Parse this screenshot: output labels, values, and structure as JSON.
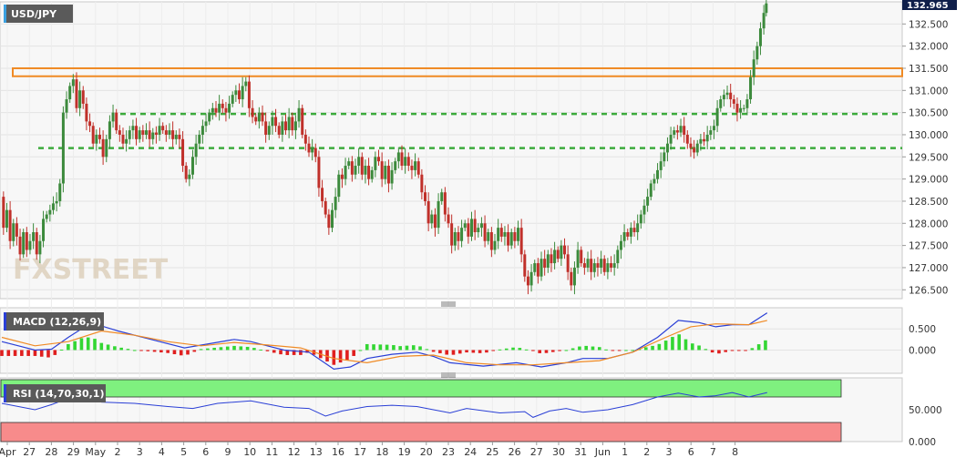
{
  "chart_data": [
    {
      "type": "candlestick",
      "title": "USD/JPY",
      "watermark": "FXSTREET",
      "ylim": [
        126.3,
        133.0
      ],
      "y_ticks": [
        "132.500",
        "132.000",
        "131.500",
        "131.000",
        "130.500",
        "130.000",
        "129.500",
        "129.000",
        "128.500",
        "128.000",
        "127.500",
        "127.000",
        "126.500"
      ],
      "y_tick_values": [
        132.5,
        132.0,
        131.5,
        131.0,
        130.5,
        130.0,
        129.5,
        129.0,
        128.5,
        128.0,
        127.5,
        127.0,
        126.5
      ],
      "last_price": "132.965",
      "last_price_value": 132.965,
      "resistance_zone": [
        131.32,
        131.5
      ],
      "support_levels": [
        130.47,
        129.7
      ],
      "x_ticks": [
        "Apr",
        "27",
        "28",
        "29",
        "May",
        "2",
        "3",
        "4",
        "5",
        "6",
        "9",
        "10",
        "11",
        "12",
        "13",
        "16",
        "17",
        "18",
        "19",
        "20",
        "23",
        "24",
        "25",
        "26",
        "27",
        "30",
        "31",
        "Jun",
        "1",
        "2",
        "3",
        "6",
        "7",
        "8"
      ],
      "path": [
        [
          0,
          128.6
        ],
        [
          4,
          127.9
        ],
        [
          8,
          128.3
        ],
        [
          12,
          127.6
        ],
        [
          16,
          128.0
        ],
        [
          20,
          127.7
        ],
        [
          24,
          127.3
        ],
        [
          28,
          127.8
        ],
        [
          32,
          127.4
        ],
        [
          36,
          127.6
        ],
        [
          40,
          127.8
        ],
        [
          44,
          127.3
        ],
        [
          48,
          127.6
        ],
        [
          52,
          128.1
        ],
        [
          56,
          128.2
        ],
        [
          60,
          128.3
        ],
        [
          64,
          128.45
        ],
        [
          68,
          128.5
        ],
        [
          72,
          128.9
        ],
        [
          76,
          130.5
        ],
        [
          80,
          130.8
        ],
        [
          84,
          131.1
        ],
        [
          88,
          131.25
        ],
        [
          92,
          130.6
        ],
        [
          96,
          131.0
        ],
        [
          100,
          130.7
        ],
        [
          104,
          130.3
        ],
        [
          108,
          130.2
        ],
        [
          112,
          129.8
        ],
        [
          116,
          130.0
        ],
        [
          120,
          129.9
        ],
        [
          124,
          129.5
        ],
        [
          128,
          129.9
        ],
        [
          132,
          130.3
        ],
        [
          136,
          130.5
        ],
        [
          140,
          130.1
        ],
        [
          144,
          130.0
        ],
        [
          148,
          129.8
        ],
        [
          152,
          129.9
        ],
        [
          156,
          130.1
        ],
        [
          160,
          130.2
        ],
        [
          164,
          129.9
        ],
        [
          168,
          130.1
        ],
        [
          172,
          130.0
        ],
        [
          176,
          130.1
        ],
        [
          180,
          129.9
        ],
        [
          184,
          130.05
        ],
        [
          188,
          130.0
        ],
        [
          192,
          130.2
        ],
        [
          196,
          130.1
        ],
        [
          200,
          130.0
        ],
        [
          204,
          130.1
        ],
        [
          208,
          129.9
        ],
        [
          212,
          130.0
        ],
        [
          216,
          129.9
        ],
        [
          220,
          129.3
        ],
        [
          224,
          129.0
        ],
        [
          228,
          129.1
        ],
        [
          232,
          129.5
        ],
        [
          236,
          129.8
        ],
        [
          240,
          130.0
        ],
        [
          244,
          130.2
        ],
        [
          248,
          130.3
        ],
        [
          252,
          130.5
        ],
        [
          256,
          130.6
        ],
        [
          260,
          130.5
        ],
        [
          264,
          130.7
        ],
        [
          268,
          130.6
        ],
        [
          272,
          130.5
        ],
        [
          276,
          130.7
        ],
        [
          280,
          130.9
        ],
        [
          284,
          131.0
        ],
        [
          288,
          130.8
        ],
        [
          292,
          131.1
        ],
        [
          296,
          131.2
        ],
        [
          300,
          130.6
        ],
        [
          304,
          130.4
        ],
        [
          308,
          130.3
        ],
        [
          312,
          130.5
        ],
        [
          316,
          130.3
        ],
        [
          320,
          130.0
        ],
        [
          324,
          130.2
        ],
        [
          328,
          130.4
        ],
        [
          332,
          130.2
        ],
        [
          336,
          130.0
        ],
        [
          340,
          130.3
        ],
        [
          344,
          130.1
        ],
        [
          348,
          130.4
        ],
        [
          352,
          130.1
        ],
        [
          356,
          130.3
        ],
        [
          360,
          130.6
        ],
        [
          364,
          130.0
        ],
        [
          368,
          129.8
        ],
        [
          372,
          129.6
        ],
        [
          376,
          129.7
        ],
        [
          380,
          129.5
        ],
        [
          384,
          128.8
        ],
        [
          388,
          128.5
        ],
        [
          392,
          128.2
        ],
        [
          396,
          127.9
        ],
        [
          400,
          128.3
        ],
        [
          404,
          128.6
        ],
        [
          408,
          129.1
        ],
        [
          412,
          129.0
        ],
        [
          416,
          129.3
        ],
        [
          420,
          129.4
        ],
        [
          424,
          129.1
        ],
        [
          428,
          129.3
        ],
        [
          432,
          129.5
        ],
        [
          436,
          129.1
        ],
        [
          440,
          129.3
        ],
        [
          444,
          129.0
        ],
        [
          448,
          129.2
        ],
        [
          452,
          129.5
        ],
        [
          456,
          129.4
        ],
        [
          460,
          129.0
        ],
        [
          464,
          129.3
        ],
        [
          468,
          128.9
        ],
        [
          472,
          129.2
        ],
        [
          476,
          129.4
        ],
        [
          480,
          129.6
        ],
        [
          484,
          129.3
        ],
        [
          488,
          129.5
        ],
        [
          492,
          129.3
        ],
        [
          496,
          129.2
        ],
        [
          500,
          129.4
        ],
        [
          504,
          129.1
        ],
        [
          508,
          128.7
        ],
        [
          512,
          128.5
        ],
        [
          516,
          128.0
        ],
        [
          520,
          128.2
        ],
        [
          524,
          127.9
        ],
        [
          528,
          128.5
        ],
        [
          532,
          128.7
        ],
        [
          536,
          128.2
        ],
        [
          540,
          128.0
        ],
        [
          544,
          127.5
        ],
        [
          548,
          127.8
        ],
        [
          552,
          127.6
        ],
        [
          556,
          127.9
        ],
        [
          560,
          128.0
        ],
        [
          564,
          127.7
        ],
        [
          568,
          128.1
        ],
        [
          572,
          127.8
        ],
        [
          576,
          127.9
        ],
        [
          580,
          128.0
        ],
        [
          584,
          127.6
        ],
        [
          588,
          127.8
        ],
        [
          592,
          127.4
        ],
        [
          596,
          127.6
        ],
        [
          600,
          127.9
        ],
        [
          604,
          127.7
        ],
        [
          608,
          127.8
        ],
        [
          612,
          127.5
        ],
        [
          616,
          127.8
        ],
        [
          620,
          127.6
        ],
        [
          624,
          127.9
        ],
        [
          628,
          127.3
        ],
        [
          632,
          126.8
        ],
        [
          636,
          126.6
        ],
        [
          640,
          126.9
        ],
        [
          644,
          127.1
        ],
        [
          648,
          126.8
        ],
        [
          652,
          127.2
        ],
        [
          656,
          127.0
        ],
        [
          660,
          127.3
        ],
        [
          664,
          127.1
        ],
        [
          668,
          127.4
        ],
        [
          672,
          127.2
        ],
        [
          676,
          127.5
        ],
        [
          680,
          127.3
        ],
        [
          684,
          126.9
        ],
        [
          688,
          126.6
        ],
        [
          692,
          127.0
        ],
        [
          696,
          127.4
        ],
        [
          700,
          127.1
        ],
        [
          704,
          127.0
        ],
        [
          708,
          127.2
        ],
        [
          712,
          126.9
        ],
        [
          716,
          127.1
        ],
        [
          720,
          127.0
        ],
        [
          724,
          127.2
        ],
        [
          728,
          126.9
        ],
        [
          732,
          127.1
        ],
        [
          736,
          127.0
        ],
        [
          740,
          127.1
        ],
        [
          744,
          127.4
        ],
        [
          748,
          127.6
        ],
        [
          752,
          127.8
        ],
        [
          756,
          127.7
        ],
        [
          760,
          127.9
        ],
        [
          764,
          127.8
        ],
        [
          768,
          128.0
        ],
        [
          772,
          128.2
        ],
        [
          776,
          128.4
        ],
        [
          780,
          128.6
        ],
        [
          784,
          128.9
        ],
        [
          788,
          129.0
        ],
        [
          792,
          129.2
        ],
        [
          796,
          129.4
        ],
        [
          800,
          129.6
        ],
        [
          804,
          129.8
        ],
        [
          808,
          130.0
        ],
        [
          812,
          130.1
        ],
        [
          816,
          130.05
        ],
        [
          820,
          130.2
        ],
        [
          824,
          130.0
        ],
        [
          828,
          129.8
        ],
        [
          832,
          129.7
        ],
        [
          836,
          129.6
        ],
        [
          840,
          129.8
        ],
        [
          844,
          129.9
        ],
        [
          848,
          129.85
        ],
        [
          852,
          130.0
        ],
        [
          856,
          130.1
        ],
        [
          860,
          130.2
        ],
        [
          864,
          130.6
        ],
        [
          868,
          130.8
        ],
        [
          872,
          130.9
        ],
        [
          876,
          130.95
        ],
        [
          880,
          130.8
        ],
        [
          884,
          130.7
        ],
        [
          888,
          130.5
        ],
        [
          892,
          130.6
        ],
        [
          896,
          130.6
        ],
        [
          900,
          130.8
        ],
        [
          904,
          131.3
        ],
        [
          908,
          131.7
        ],
        [
          912,
          132.0
        ],
        [
          916,
          132.4
        ],
        [
          920,
          132.75
        ],
        [
          922,
          132.965
        ]
      ]
    },
    {
      "type": "line",
      "title": "MACD (12,26,9)",
      "ylim": [
        -0.55,
        1.0
      ],
      "y_ticks": [
        "0.500",
        "0.000"
      ],
      "y_tick_values": [
        0.5,
        0.0
      ],
      "macd": [
        [
          0,
          0.2
        ],
        [
          20,
          0.1
        ],
        [
          40,
          0.0
        ],
        [
          60,
          0.02
        ],
        [
          80,
          0.3
        ],
        [
          100,
          0.55
        ],
        [
          115,
          0.6
        ],
        [
          140,
          0.45
        ],
        [
          180,
          0.25
        ],
        [
          220,
          0.05
        ],
        [
          250,
          0.15
        ],
        [
          280,
          0.25
        ],
        [
          300,
          0.2
        ],
        [
          340,
          0.0
        ],
        [
          370,
          -0.05
        ],
        [
          400,
          -0.45
        ],
        [
          420,
          -0.4
        ],
        [
          440,
          -0.2
        ],
        [
          470,
          -0.1
        ],
        [
          500,
          -0.05
        ],
        [
          520,
          -0.15
        ],
        [
          540,
          -0.3
        ],
        [
          580,
          -0.38
        ],
        [
          620,
          -0.3
        ],
        [
          650,
          -0.4
        ],
        [
          680,
          -0.3
        ],
        [
          700,
          -0.2
        ],
        [
          730,
          -0.2
        ],
        [
          760,
          -0.05
        ],
        [
          790,
          0.3
        ],
        [
          815,
          0.7
        ],
        [
          840,
          0.65
        ],
        [
          860,
          0.55
        ],
        [
          880,
          0.6
        ],
        [
          900,
          0.6
        ],
        [
          922,
          0.88
        ]
      ],
      "signal": [
        [
          0,
          0.3
        ],
        [
          40,
          0.1
        ],
        [
          80,
          0.2
        ],
        [
          120,
          0.45
        ],
        [
          160,
          0.35
        ],
        [
          200,
          0.2
        ],
        [
          240,
          0.1
        ],
        [
          280,
          0.18
        ],
        [
          320,
          0.12
        ],
        [
          360,
          0.05
        ],
        [
          400,
          -0.2
        ],
        [
          440,
          -0.3
        ],
        [
          480,
          -0.15
        ],
        [
          520,
          -0.12
        ],
        [
          560,
          -0.3
        ],
        [
          600,
          -0.35
        ],
        [
          640,
          -0.35
        ],
        [
          680,
          -0.3
        ],
        [
          720,
          -0.25
        ],
        [
          760,
          -0.05
        ],
        [
          800,
          0.3
        ],
        [
          830,
          0.55
        ],
        [
          860,
          0.62
        ],
        [
          900,
          0.6
        ],
        [
          922,
          0.7
        ]
      ]
    },
    {
      "type": "line",
      "title": "RSI (14,70,30,1)",
      "ylim": [
        0,
        100
      ],
      "y_ticks": [
        "50.000",
        "0.000"
      ],
      "y_tick_values": [
        50,
        0
      ],
      "overbought": 70,
      "oversold": 30,
      "rsi": [
        [
          0,
          60
        ],
        [
          20,
          55
        ],
        [
          40,
          50
        ],
        [
          60,
          58
        ],
        [
          80,
          68
        ],
        [
          100,
          70
        ],
        [
          120,
          62
        ],
        [
          160,
          60
        ],
        [
          200,
          55
        ],
        [
          230,
          52
        ],
        [
          260,
          60
        ],
        [
          300,
          64
        ],
        [
          340,
          54
        ],
        [
          370,
          52
        ],
        [
          390,
          40
        ],
        [
          410,
          48
        ],
        [
          440,
          55
        ],
        [
          470,
          57
        ],
        [
          500,
          55
        ],
        [
          520,
          50
        ],
        [
          540,
          45
        ],
        [
          560,
          52
        ],
        [
          600,
          45
        ],
        [
          630,
          47
        ],
        [
          640,
          38
        ],
        [
          660,
          48
        ],
        [
          680,
          52
        ],
        [
          700,
          46
        ],
        [
          730,
          50
        ],
        [
          760,
          58
        ],
        [
          790,
          70
        ],
        [
          815,
          76
        ],
        [
          840,
          70
        ],
        [
          860,
          72
        ],
        [
          880,
          77
        ],
        [
          900,
          70
        ],
        [
          922,
          77
        ]
      ]
    }
  ]
}
